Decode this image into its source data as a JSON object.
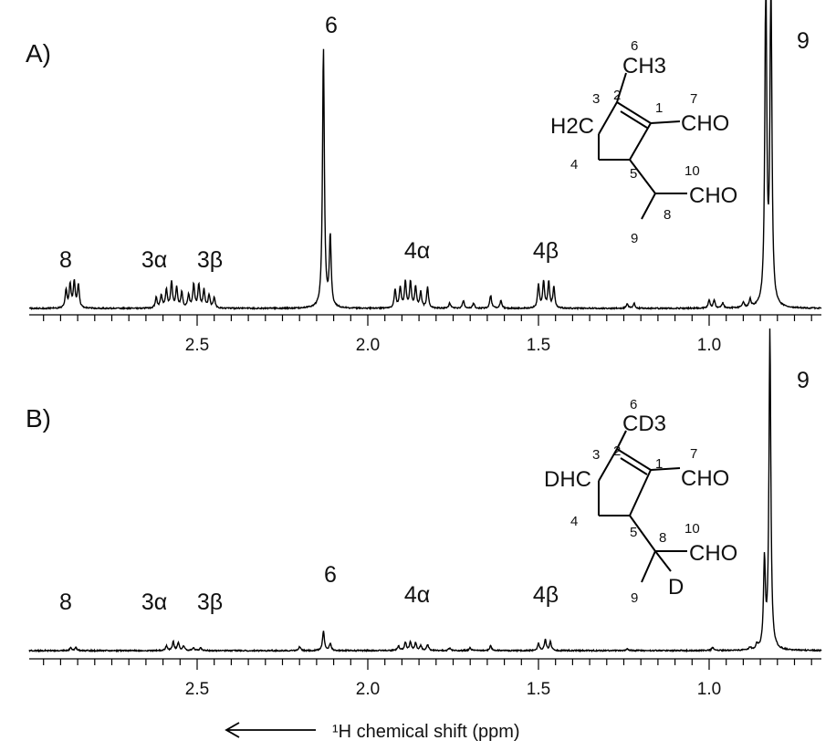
{
  "chart_data": {
    "type": "line",
    "xlabel": "¹H chemical shift (ppm)",
    "x_reversed": true,
    "xlim": [
      3.0,
      0.7
    ],
    "xticks": [
      "2.5",
      "2.0",
      "1.5",
      "1.0"
    ],
    "grid": false,
    "panels": [
      {
        "label": "A)",
        "structure": {
          "labels": [
            "CH3",
            "H2C",
            "CHO",
            "CHO"
          ],
          "locants": [
            "6",
            "3",
            "2",
            "1",
            "7",
            "4",
            "5",
            "10",
            "8",
            "9"
          ]
        },
        "peak_labels": [
          {
            "text": "8",
            "x": 2.87
          },
          {
            "text": "3α",
            "x": 2.63
          },
          {
            "text": "3β",
            "x": 2.47
          },
          {
            "text": "6",
            "x": 2.12
          },
          {
            "text": "4α",
            "x": 1.88
          },
          {
            "text": "4β",
            "x": 1.49
          },
          {
            "text": "9",
            "x": 0.74
          }
        ],
        "series": [
          {
            "peaks": [
              {
                "x": 2.872,
                "h": 0.09
              },
              {
                "x": 2.86,
                "h": 0.1
              },
              {
                "x": 2.848,
                "h": 0.09
              },
              {
                "x": 2.884,
                "h": 0.07
              },
              {
                "x": 2.62,
                "h": 0.04
              },
              {
                "x": 2.605,
                "h": 0.05
              },
              {
                "x": 2.59,
                "h": 0.07
              },
              {
                "x": 2.575,
                "h": 0.1
              },
              {
                "x": 2.56,
                "h": 0.08
              },
              {
                "x": 2.545,
                "h": 0.06
              },
              {
                "x": 2.525,
                "h": 0.05
              },
              {
                "x": 2.51,
                "h": 0.09
              },
              {
                "x": 2.495,
                "h": 0.09
              },
              {
                "x": 2.48,
                "h": 0.07
              },
              {
                "x": 2.465,
                "h": 0.05
              },
              {
                "x": 2.45,
                "h": 0.04
              },
              {
                "x": 2.13,
                "h": 1.0
              },
              {
                "x": 2.11,
                "h": 0.27
              },
              {
                "x": 1.92,
                "h": 0.07
              },
              {
                "x": 1.905,
                "h": 0.08
              },
              {
                "x": 1.89,
                "h": 0.1
              },
              {
                "x": 1.875,
                "h": 0.1
              },
              {
                "x": 1.86,
                "h": 0.08
              },
              {
                "x": 1.845,
                "h": 0.06
              },
              {
                "x": 1.825,
                "h": 0.08
              },
              {
                "x": 1.76,
                "h": 0.02
              },
              {
                "x": 1.72,
                "h": 0.03
              },
              {
                "x": 1.69,
                "h": 0.02
              },
              {
                "x": 1.64,
                "h": 0.05
              },
              {
                "x": 1.61,
                "h": 0.03
              },
              {
                "x": 1.5,
                "h": 0.09
              },
              {
                "x": 1.485,
                "h": 0.1
              },
              {
                "x": 1.47,
                "h": 0.1
              },
              {
                "x": 1.455,
                "h": 0.08
              },
              {
                "x": 1.24,
                "h": 0.02
              },
              {
                "x": 1.22,
                "h": 0.02
              },
              {
                "x": 1.0,
                "h": 0.03
              },
              {
                "x": 0.985,
                "h": 0.03
              },
              {
                "x": 0.96,
                "h": 0.02
              },
              {
                "x": 0.9,
                "h": 0.02
              },
              {
                "x": 0.88,
                "h": 0.03
              },
              {
                "x": 0.834,
                "h": 1.3
              },
              {
                "x": 0.819,
                "h": 1.3
              }
            ]
          }
        ]
      },
      {
        "label": "B)",
        "structure": {
          "labels": [
            "CD3",
            "DHC",
            "CHO",
            "CHO",
            "D"
          ],
          "locants": [
            "6",
            "3",
            "2",
            "1",
            "7",
            "4",
            "5",
            "8",
            "10",
            "9"
          ]
        },
        "peak_labels": [
          {
            "text": "8",
            "x": 2.87
          },
          {
            "text": "3α",
            "x": 2.63
          },
          {
            "text": "3β",
            "x": 2.47
          },
          {
            "text": "6",
            "x": 2.12
          },
          {
            "text": "4α",
            "x": 1.88
          },
          {
            "text": "4β",
            "x": 1.49
          },
          {
            "text": "9",
            "x": 0.74
          }
        ],
        "series": [
          {
            "peaks": [
              {
                "x": 2.87,
                "h": 0.012
              },
              {
                "x": 2.855,
                "h": 0.012
              },
              {
                "x": 2.59,
                "h": 0.02
              },
              {
                "x": 2.57,
                "h": 0.035
              },
              {
                "x": 2.555,
                "h": 0.03
              },
              {
                "x": 2.54,
                "h": 0.02
              },
              {
                "x": 2.51,
                "h": 0.012
              },
              {
                "x": 2.49,
                "h": 0.012
              },
              {
                "x": 2.2,
                "h": 0.015
              },
              {
                "x": 2.13,
                "h": 0.08
              },
              {
                "x": 2.11,
                "h": 0.03
              },
              {
                "x": 1.91,
                "h": 0.02
              },
              {
                "x": 1.89,
                "h": 0.035
              },
              {
                "x": 1.875,
                "h": 0.035
              },
              {
                "x": 1.86,
                "h": 0.03
              },
              {
                "x": 1.845,
                "h": 0.02
              },
              {
                "x": 1.825,
                "h": 0.025
              },
              {
                "x": 1.76,
                "h": 0.012
              },
              {
                "x": 1.7,
                "h": 0.012
              },
              {
                "x": 1.64,
                "h": 0.02
              },
              {
                "x": 1.5,
                "h": 0.03
              },
              {
                "x": 1.48,
                "h": 0.045
              },
              {
                "x": 1.465,
                "h": 0.035
              },
              {
                "x": 1.24,
                "h": 0.008
              },
              {
                "x": 0.99,
                "h": 0.012
              },
              {
                "x": 0.88,
                "h": 0.01
              },
              {
                "x": 0.86,
                "h": 0.02
              },
              {
                "x": 0.838,
                "h": 0.35
              },
              {
                "x": 0.822,
                "h": 1.3
              }
            ]
          }
        ]
      }
    ]
  }
}
